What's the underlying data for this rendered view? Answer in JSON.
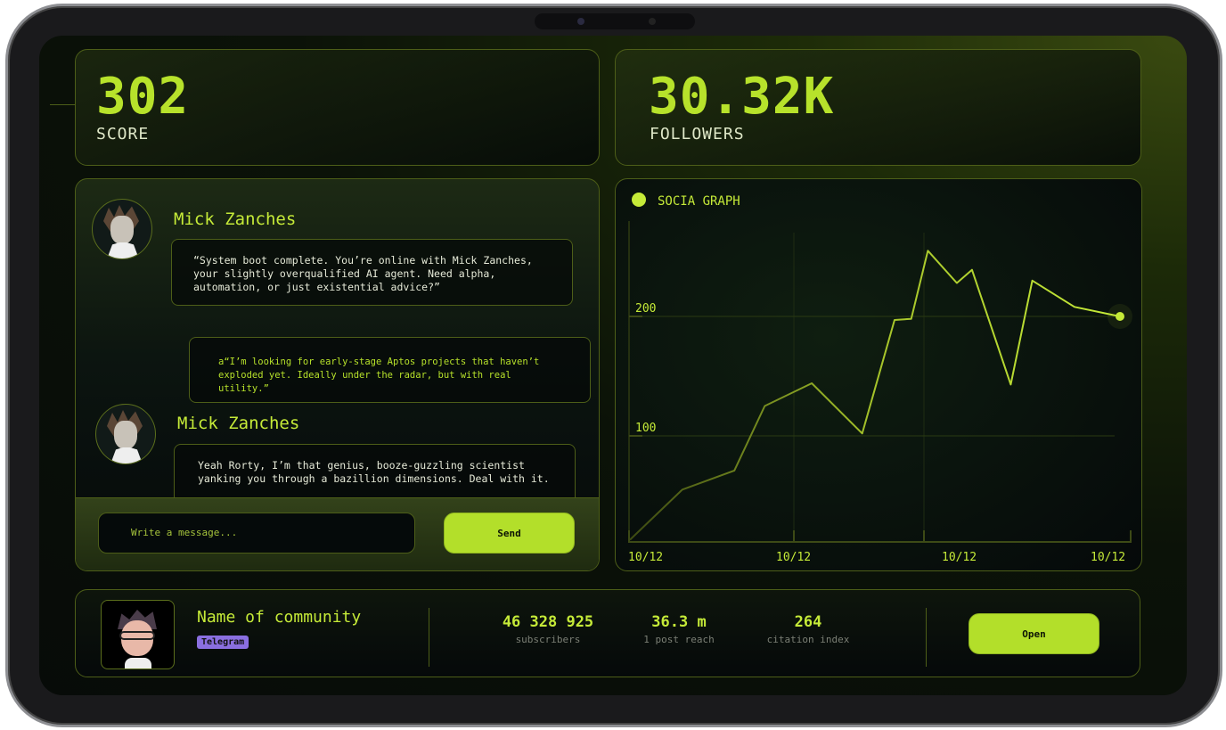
{
  "score": {
    "value": "302",
    "label": "SCORE"
  },
  "followers": {
    "value": "30.32K",
    "label": "FOLLOWERS"
  },
  "chat": {
    "messages": [
      {
        "sender": "Mick Zanches",
        "text": "“System boot complete. You’re online with Mick Zanches, your slightly overqualified AI agent. Need alpha, automation, or just existential advice?”"
      },
      {
        "sender": "",
        "text": "a“I’m looking for early-stage Aptos projects that haven’t exploded yet. Ideally under the radar, but with real utility.”"
      },
      {
        "sender": "Mick Zanches",
        "text": "Yeah Rorty, I’m that genius, booze-guzzling scientist yanking you through a bazillion dimensions. Deal with it."
      }
    ],
    "input_placeholder": "Write a message...",
    "send_label": "Send"
  },
  "chart_data": {
    "type": "line",
    "title": "SOCIA GRAPH",
    "x_tick_labels": [
      "10/12",
      "10/12",
      "10/12",
      "10/12"
    ],
    "y_tick_labels": [
      "100",
      "200"
    ],
    "ylim": [
      11,
      280
    ],
    "grid": true,
    "color": "#c5ea38",
    "series": [
      {
        "x": [
          0,
          10.7,
          21.3,
          27.5,
          37.1,
          47.4,
          54,
          57.4,
          60.8,
          66.7,
          69.8,
          77.7,
          82.1,
          90.7,
          100
        ],
        "y": [
          13,
          55,
          71,
          125,
          144,
          102,
          197,
          198,
          255,
          228,
          239,
          143,
          230,
          208,
          200
        ]
      }
    ]
  },
  "community": {
    "name": "Name of community",
    "platform": "Telegram",
    "platform_color": "#8a6fe0",
    "stats": [
      {
        "value": "46 328 925",
        "label": "subscribers"
      },
      {
        "value": "36.3 m",
        "label": "1 post reach"
      },
      {
        "value": "264",
        "label": "citation index"
      }
    ],
    "open_label": "Open"
  }
}
